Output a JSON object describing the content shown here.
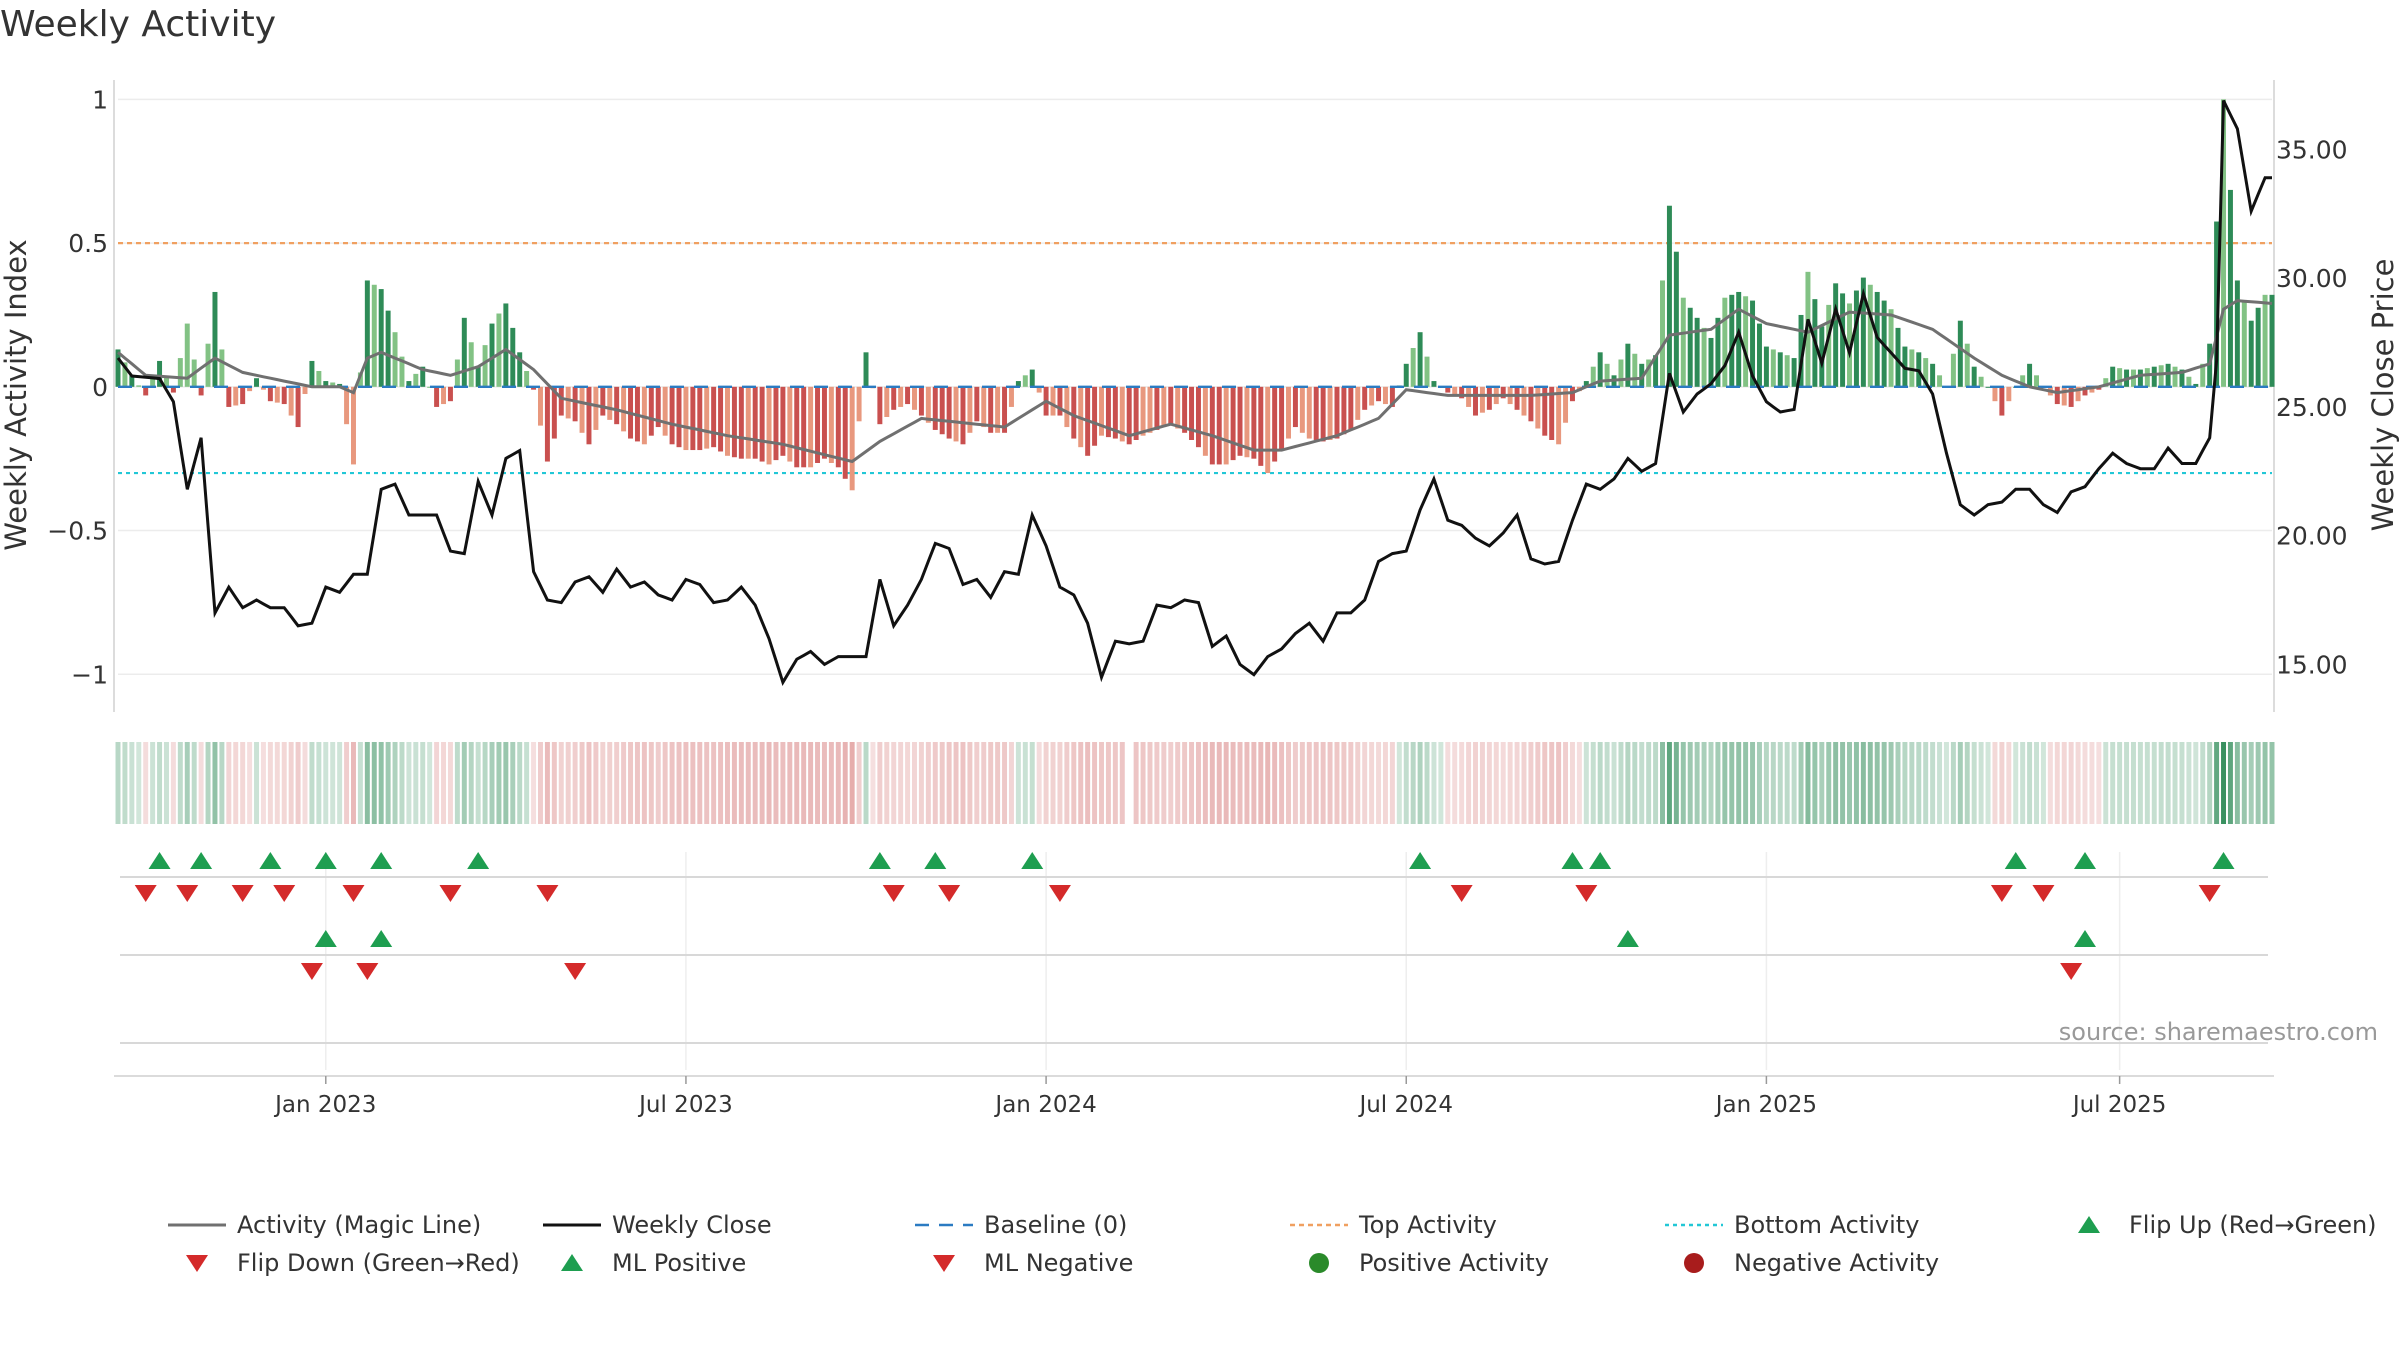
{
  "chart_data": {
    "type": "bar",
    "title": "Weekly Activity",
    "ylabel_left": "Weekly Activity Index",
    "ylabel_right": "Weekly Close Price",
    "source": "source: sharemaestro.com",
    "left_axis": {
      "range": [
        -1.1,
        1.05
      ],
      "ticks": [
        {
          "value": 1,
          "label": "1"
        },
        {
          "value": 0.5,
          "label": "0.5"
        },
        {
          "value": 0,
          "label": "0"
        },
        {
          "value": -0.5,
          "label": "−0.5"
        },
        {
          "value": -1,
          "label": "−1"
        }
      ]
    },
    "right_axis": {
      "range": [
        13.5,
        37.5
      ],
      "ticks": [
        {
          "value": 35,
          "label": "35.00"
        },
        {
          "value": 30,
          "label": "30.00"
        },
        {
          "value": 25,
          "label": "25.00"
        },
        {
          "value": 20,
          "label": "20.00"
        },
        {
          "value": 15,
          "label": "15.00"
        }
      ]
    },
    "x_ticks": [
      {
        "week": 30,
        "label": "Jan 2023"
      },
      {
        "week": 82,
        "label": "Jul 2023"
      },
      {
        "week": 134,
        "label": "Jan 2024"
      },
      {
        "week": 186,
        "label": "Jul 2024"
      },
      {
        "week": 238,
        "label": "Jan 2025"
      },
      {
        "week": 289,
        "label": "Jul 2025"
      }
    ],
    "weeks": 312,
    "top_activity": 0.5,
    "bottom_activity": -0.3,
    "colors": {
      "pos_strong": "#2e8b57",
      "pos_light": "#82c284",
      "neg_strong": "#c9504f",
      "neg_light": "#e8987e",
      "magic_line": "#707070",
      "close": "#111111",
      "baseline": "#2b7bc2",
      "top": "#f0a060",
      "bottom": "#22c7d6",
      "flip_up": "#1e9e50",
      "flip_down": "#d42a2a",
      "positive_activity": "#2a8a2a",
      "negative_activity": "#a81c1c"
    },
    "activity_anchors": [
      [
        0,
        0.13
      ],
      [
        2,
        0.04
      ],
      [
        4,
        -0.03
      ],
      [
        6,
        0.09
      ],
      [
        8,
        -0.02
      ],
      [
        10,
        0.22
      ],
      [
        12,
        -0.03
      ],
      [
        14,
        0.33
      ],
      [
        16,
        -0.07
      ],
      [
        18,
        -0.06
      ],
      [
        20,
        0.03
      ],
      [
        22,
        -0.05
      ],
      [
        24,
        -0.06
      ],
      [
        26,
        -0.14
      ],
      [
        28,
        0.09
      ],
      [
        30,
        0.02
      ],
      [
        32,
        0.01
      ],
      [
        34,
        -0.27
      ],
      [
        36,
        0.37
      ],
      [
        38,
        0.34
      ],
      [
        40,
        0.19
      ],
      [
        42,
        0.02
      ],
      [
        44,
        0.07
      ],
      [
        46,
        -0.07
      ],
      [
        48,
        -0.05
      ],
      [
        50,
        0.24
      ],
      [
        52,
        0.07
      ],
      [
        54,
        0.22
      ],
      [
        56,
        0.29
      ],
      [
        58,
        0.12
      ],
      [
        60,
        -0.01
      ],
      [
        62,
        -0.26
      ],
      [
        64,
        -0.1
      ],
      [
        66,
        -0.12
      ],
      [
        68,
        -0.2
      ],
      [
        70,
        -0.1
      ],
      [
        72,
        -0.13
      ],
      [
        74,
        -0.18
      ],
      [
        76,
        -0.2
      ],
      [
        78,
        -0.14
      ],
      [
        80,
        -0.2
      ],
      [
        82,
        -0.22
      ],
      [
        84,
        -0.22
      ],
      [
        86,
        -0.21
      ],
      [
        88,
        -0.24
      ],
      [
        90,
        -0.25
      ],
      [
        92,
        -0.25
      ],
      [
        94,
        -0.27
      ],
      [
        96,
        -0.24
      ],
      [
        98,
        -0.28
      ],
      [
        100,
        -0.28
      ],
      [
        102,
        -0.25
      ],
      [
        104,
        -0.28
      ],
      [
        106,
        -0.36
      ],
      [
        108,
        0.12
      ],
      [
        110,
        -0.13
      ],
      [
        112,
        -0.08
      ],
      [
        114,
        -0.06
      ],
      [
        116,
        -0.1
      ],
      [
        118,
        -0.15
      ],
      [
        120,
        -0.18
      ],
      [
        122,
        -0.2
      ],
      [
        124,
        -0.12
      ],
      [
        126,
        -0.16
      ],
      [
        128,
        -0.16
      ],
      [
        130,
        0.02
      ],
      [
        132,
        0.06
      ],
      [
        134,
        -0.1
      ],
      [
        136,
        -0.1
      ],
      [
        138,
        -0.18
      ],
      [
        140,
        -0.24
      ],
      [
        142,
        -0.17
      ],
      [
        144,
        -0.18
      ],
      [
        146,
        -0.2
      ],
      [
        148,
        -0.17
      ],
      [
        150,
        -0.15
      ],
      [
        152,
        -0.13
      ],
      [
        154,
        -0.16
      ],
      [
        156,
        -0.21
      ],
      [
        158,
        -0.27
      ],
      [
        160,
        -0.27
      ],
      [
        162,
        -0.24
      ],
      [
        164,
        -0.25
      ],
      [
        166,
        -0.3
      ],
      [
        168,
        -0.22
      ],
      [
        170,
        -0.14
      ],
      [
        172,
        -0.18
      ],
      [
        174,
        -0.19
      ],
      [
        176,
        -0.18
      ],
      [
        178,
        -0.15
      ],
      [
        180,
        -0.08
      ],
      [
        182,
        -0.05
      ],
      [
        184,
        -0.07
      ],
      [
        186,
        0.08
      ],
      [
        188,
        0.19
      ],
      [
        190,
        0.02
      ],
      [
        192,
        -0.02
      ],
      [
        194,
        -0.04
      ],
      [
        196,
        -0.1
      ],
      [
        198,
        -0.08
      ],
      [
        200,
        -0.04
      ],
      [
        202,
        -0.08
      ],
      [
        204,
        -0.12
      ],
      [
        206,
        -0.17
      ],
      [
        208,
        -0.2
      ],
      [
        210,
        -0.05
      ],
      [
        212,
        0.02
      ],
      [
        214,
        0.12
      ],
      [
        216,
        0.04
      ],
      [
        218,
        0.15
      ],
      [
        220,
        0.08
      ],
      [
        222,
        0.11
      ],
      [
        224,
        0.63
      ],
      [
        226,
        0.31
      ],
      [
        228,
        0.24
      ],
      [
        230,
        0.17
      ],
      [
        232,
        0.31
      ],
      [
        234,
        0.33
      ],
      [
        236,
        0.3
      ],
      [
        238,
        0.14
      ],
      [
        240,
        0.12
      ],
      [
        242,
        0.1
      ],
      [
        244,
        0.4
      ],
      [
        246,
        0.21
      ],
      [
        248,
        0.36
      ],
      [
        250,
        0.29
      ],
      [
        252,
        0.38
      ],
      [
        254,
        0.33
      ],
      [
        256,
        0.27
      ],
      [
        258,
        0.14
      ],
      [
        260,
        0.12
      ],
      [
        262,
        0.08
      ],
      [
        264,
        0.0
      ],
      [
        266,
        0.23
      ],
      [
        268,
        0.07
      ],
      [
        270,
        0.0
      ],
      [
        272,
        -0.1
      ],
      [
        274,
        0.0
      ],
      [
        276,
        0.08
      ],
      [
        278,
        0.0
      ],
      [
        280,
        -0.06
      ],
      [
        282,
        -0.07
      ],
      [
        284,
        -0.03
      ],
      [
        286,
        -0.01
      ],
      [
        288,
        0.07
      ],
      [
        290,
        0.06
      ],
      [
        292,
        0.06
      ],
      [
        294,
        0.07
      ],
      [
        296,
        0.08
      ],
      [
        298,
        0.06
      ],
      [
        300,
        0.01
      ],
      [
        302,
        0.15
      ],
      [
        304,
        1.0
      ],
      [
        306,
        0.37
      ],
      [
        308,
        0.23
      ],
      [
        310,
        0.32
      ],
      [
        311,
        0.32
      ]
    ],
    "magic_anchors": [
      [
        0,
        0.12
      ],
      [
        4,
        0.04
      ],
      [
        10,
        0.03
      ],
      [
        14,
        0.1
      ],
      [
        18,
        0.05
      ],
      [
        24,
        0.02
      ],
      [
        28,
        0.0
      ],
      [
        32,
        0.0
      ],
      [
        34,
        -0.02
      ],
      [
        36,
        0.1
      ],
      [
        38,
        0.12
      ],
      [
        44,
        0.06
      ],
      [
        48,
        0.04
      ],
      [
        52,
        0.07
      ],
      [
        56,
        0.13
      ],
      [
        60,
        0.06
      ],
      [
        64,
        -0.04
      ],
      [
        72,
        -0.08
      ],
      [
        80,
        -0.13
      ],
      [
        88,
        -0.17
      ],
      [
        96,
        -0.2
      ],
      [
        106,
        -0.26
      ],
      [
        110,
        -0.19
      ],
      [
        116,
        -0.11
      ],
      [
        120,
        -0.12
      ],
      [
        128,
        -0.14
      ],
      [
        134,
        -0.05
      ],
      [
        138,
        -0.1
      ],
      [
        146,
        -0.17
      ],
      [
        152,
        -0.13
      ],
      [
        158,
        -0.17
      ],
      [
        164,
        -0.22
      ],
      [
        168,
        -0.22
      ],
      [
        176,
        -0.17
      ],
      [
        182,
        -0.11
      ],
      [
        186,
        -0.01
      ],
      [
        192,
        -0.03
      ],
      [
        198,
        -0.03
      ],
      [
        204,
        -0.03
      ],
      [
        210,
        -0.02
      ],
      [
        214,
        0.02
      ],
      [
        220,
        0.03
      ],
      [
        224,
        0.18
      ],
      [
        230,
        0.2
      ],
      [
        234,
        0.27
      ],
      [
        238,
        0.22
      ],
      [
        244,
        0.19
      ],
      [
        250,
        0.26
      ],
      [
        256,
        0.25
      ],
      [
        262,
        0.2
      ],
      [
        268,
        0.1
      ],
      [
        272,
        0.04
      ],
      [
        276,
        0.0
      ],
      [
        280,
        -0.02
      ],
      [
        286,
        0.0
      ],
      [
        292,
        0.04
      ],
      [
        298,
        0.05
      ],
      [
        302,
        0.08
      ],
      [
        304,
        0.27
      ],
      [
        306,
        0.3
      ],
      [
        311,
        0.29
      ]
    ],
    "close_anchors": [
      [
        0,
        26.9
      ],
      [
        2,
        26.2
      ],
      [
        6,
        26.1
      ],
      [
        8,
        25.2
      ],
      [
        10,
        21.8
      ],
      [
        12,
        23.8
      ],
      [
        14,
        17
      ],
      [
        16,
        18
      ],
      [
        18,
        17.2
      ],
      [
        20,
        17.5
      ],
      [
        22,
        17.2
      ],
      [
        24,
        17.2
      ],
      [
        26,
        16.5
      ],
      [
        28,
        16.6
      ],
      [
        30,
        18
      ],
      [
        32,
        17.8
      ],
      [
        34,
        18.5
      ],
      [
        36,
        18.5
      ],
      [
        38,
        21.8
      ],
      [
        40,
        22
      ],
      [
        42,
        20.8
      ],
      [
        44,
        20.8
      ],
      [
        46,
        20.8
      ],
      [
        48,
        19.4
      ],
      [
        50,
        19.3
      ],
      [
        52,
        22.1
      ],
      [
        54,
        20.8
      ],
      [
        56,
        23
      ],
      [
        58,
        23.3
      ],
      [
        60,
        18.6
      ],
      [
        62,
        17.5
      ],
      [
        64,
        17.4
      ],
      [
        66,
        18.2
      ],
      [
        68,
        18.4
      ],
      [
        70,
        17.8
      ],
      [
        72,
        18.7
      ],
      [
        74,
        18
      ],
      [
        76,
        18.2
      ],
      [
        78,
        17.7
      ],
      [
        80,
        17.5
      ],
      [
        82,
        18.3
      ],
      [
        84,
        18.1
      ],
      [
        86,
        17.4
      ],
      [
        88,
        17.5
      ],
      [
        90,
        18
      ],
      [
        92,
        17.3
      ],
      [
        94,
        16
      ],
      [
        96,
        14.3
      ],
      [
        98,
        15.2
      ],
      [
        100,
        15.5
      ],
      [
        102,
        15
      ],
      [
        104,
        15.3
      ],
      [
        106,
        15.3
      ],
      [
        108,
        15.3
      ],
      [
        110,
        18.3
      ],
      [
        112,
        16.5
      ],
      [
        114,
        17.3
      ],
      [
        116,
        18.3
      ],
      [
        118,
        19.7
      ],
      [
        120,
        19.5
      ],
      [
        122,
        18.1
      ],
      [
        124,
        18.3
      ],
      [
        126,
        17.6
      ],
      [
        128,
        18.6
      ],
      [
        130,
        18.5
      ],
      [
        132,
        20.8
      ],
      [
        134,
        19.6
      ],
      [
        136,
        18
      ],
      [
        138,
        17.7
      ],
      [
        140,
        16.6
      ],
      [
        142,
        14.5
      ],
      [
        144,
        15.9
      ],
      [
        146,
        15.8
      ],
      [
        148,
        15.9
      ],
      [
        150,
        17.3
      ],
      [
        152,
        17.2
      ],
      [
        154,
        17.5
      ],
      [
        156,
        17.4
      ],
      [
        158,
        15.7
      ],
      [
        160,
        16.1
      ],
      [
        162,
        15
      ],
      [
        164,
        14.6
      ],
      [
        166,
        15.3
      ],
      [
        168,
        15.6
      ],
      [
        170,
        16.2
      ],
      [
        172,
        16.6
      ],
      [
        174,
        15.9
      ],
      [
        176,
        17
      ],
      [
        178,
        17
      ],
      [
        180,
        17.5
      ],
      [
        182,
        19
      ],
      [
        184,
        19.3
      ],
      [
        186,
        19.4
      ],
      [
        188,
        21
      ],
      [
        190,
        22.2
      ],
      [
        192,
        20.6
      ],
      [
        194,
        20.4
      ],
      [
        196,
        19.9
      ],
      [
        198,
        19.6
      ],
      [
        200,
        20.1
      ],
      [
        202,
        20.8
      ],
      [
        204,
        19.1
      ],
      [
        206,
        18.9
      ],
      [
        208,
        19
      ],
      [
        210,
        20.6
      ],
      [
        212,
        22
      ],
      [
        214,
        21.8
      ],
      [
        216,
        22.2
      ],
      [
        218,
        23
      ],
      [
        220,
        22.5
      ],
      [
        222,
        22.8
      ],
      [
        224,
        26.3
      ],
      [
        226,
        24.8
      ],
      [
        228,
        25.5
      ],
      [
        230,
        25.9
      ],
      [
        232,
        26.6
      ],
      [
        234,
        27.9
      ],
      [
        236,
        26.2
      ],
      [
        238,
        25.2
      ],
      [
        240,
        24.8
      ],
      [
        242,
        24.9
      ],
      [
        244,
        28.4
      ],
      [
        246,
        26.7
      ],
      [
        248,
        28.8
      ],
      [
        250,
        27.1
      ],
      [
        252,
        29.4
      ],
      [
        254,
        27.7
      ],
      [
        256,
        27.1
      ],
      [
        258,
        26.5
      ],
      [
        260,
        26.4
      ],
      [
        262,
        25.5
      ],
      [
        264,
        23.2
      ],
      [
        266,
        21.2
      ],
      [
        268,
        20.8
      ],
      [
        270,
        21.2
      ],
      [
        272,
        21.3
      ],
      [
        274,
        21.8
      ],
      [
        276,
        21.8
      ],
      [
        278,
        21.2
      ],
      [
        280,
        20.9
      ],
      [
        282,
        21.7
      ],
      [
        284,
        21.9
      ],
      [
        286,
        22.6
      ],
      [
        288,
        23.2
      ],
      [
        290,
        22.8
      ],
      [
        292,
        22.6
      ],
      [
        294,
        22.6
      ],
      [
        296,
        23.4
      ],
      [
        298,
        22.8
      ],
      [
        300,
        22.8
      ],
      [
        302,
        23.8
      ],
      [
        303,
        26.8
      ],
      [
        304,
        36.9
      ],
      [
        306,
        35.8
      ],
      [
        308,
        32.6
      ],
      [
        310,
        33.9
      ]
    ],
    "activity_strip": {
      "gap_weeks": [
        146
      ]
    },
    "signal_rows": {
      "row1_up": [
        6,
        12,
        22,
        30,
        38,
        52,
        110,
        118,
        132,
        188,
        210,
        214,
        274,
        284,
        304
      ],
      "row1_down": [
        4,
        10,
        18,
        24,
        34,
        48,
        62,
        112,
        120,
        136,
        194,
        212,
        272,
        278,
        302
      ],
      "row2_up": [
        30,
        38,
        218,
        284
      ],
      "row2_down": [
        28,
        36,
        66,
        282
      ]
    },
    "legend": [
      {
        "label": "Activity (Magic Line)",
        "kind": "magic_line"
      },
      {
        "label": "Weekly Close",
        "kind": "close"
      },
      {
        "label": "Baseline (0)",
        "kind": "baseline"
      },
      {
        "label": "Top Activity",
        "kind": "top"
      },
      {
        "label": "Bottom Activity",
        "kind": "bottom"
      },
      {
        "label": "Flip Up (Red→Green)",
        "kind": "flip_up"
      },
      {
        "label": "Flip Down (Green→Red)",
        "kind": "flip_down"
      },
      {
        "label": "ML Positive",
        "kind": "ml_pos"
      },
      {
        "label": "ML Negative",
        "kind": "ml_neg"
      },
      {
        "label": "Positive Activity",
        "kind": "pos_activity"
      },
      {
        "label": "Negative Activity",
        "kind": "neg_activity"
      }
    ]
  }
}
